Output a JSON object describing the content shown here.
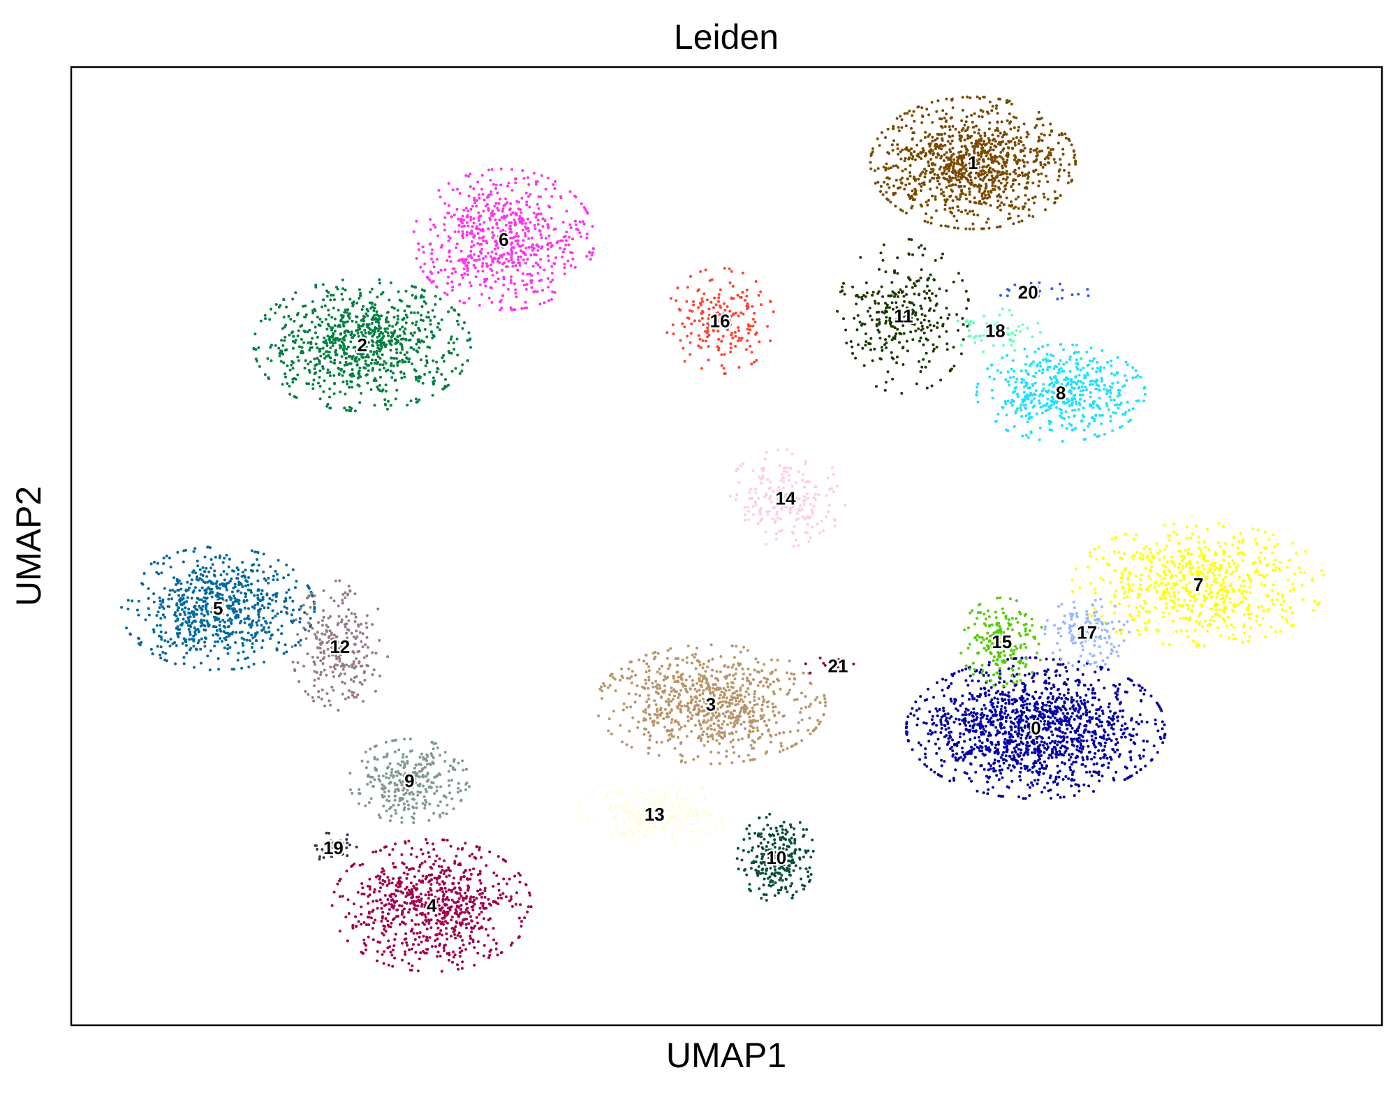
{
  "chart_data": {
    "type": "scatter",
    "title": "Leiden",
    "xlabel": "UMAP1",
    "ylabel": "UMAP2",
    "xlim": [
      0,
      100
    ],
    "ylim": [
      0,
      100
    ],
    "grid": false,
    "legend": "on data",
    "ticks": "none",
    "clusters": [
      {
        "label": "0",
        "color": "#0000a3",
        "x": 73.6,
        "y": 31.0,
        "sx": 4.3,
        "sy": 3.2,
        "n": 1400
      },
      {
        "label": "1",
        "color": "#7a4a00",
        "x": 68.8,
        "y": 90.0,
        "sx": 3.4,
        "sy": 3.0,
        "n": 1000
      },
      {
        "label": "2",
        "color": "#008040",
        "x": 22.2,
        "y": 71.0,
        "sx": 3.6,
        "sy": 3.0,
        "n": 850
      },
      {
        "label": "3",
        "color": "#b8956a",
        "x": 48.8,
        "y": 33.5,
        "sx": 3.8,
        "sy": 2.7,
        "n": 800
      },
      {
        "label": "4",
        "color": "#a0004e",
        "x": 27.5,
        "y": 12.5,
        "sx": 3.3,
        "sy": 3.0,
        "n": 750
      },
      {
        "label": "5",
        "color": "#0068a0",
        "x": 11.2,
        "y": 43.5,
        "sx": 3.2,
        "sy": 2.8,
        "n": 720
      },
      {
        "label": "6",
        "color": "#ff33ee",
        "x": 33.0,
        "y": 82.0,
        "sx": 3.0,
        "sy": 3.2,
        "n": 650
      },
      {
        "label": "7",
        "color": "#ffff00",
        "x": 86.0,
        "y": 46.0,
        "sx": 4.2,
        "sy": 2.8,
        "n": 650
      },
      {
        "label": "8",
        "color": "#20e0ff",
        "x": 75.5,
        "y": 66.0,
        "sx": 2.8,
        "sy": 2.2,
        "n": 480
      },
      {
        "label": "9",
        "color": "#7f9990",
        "x": 25.8,
        "y": 25.5,
        "sx": 2.0,
        "sy": 1.9,
        "n": 300
      },
      {
        "label": "10",
        "color": "#0a4f3c",
        "x": 53.8,
        "y": 17.5,
        "sx": 1.3,
        "sy": 2.0,
        "n": 250
      },
      {
        "label": "11",
        "color": "#1a3a00",
        "x": 63.5,
        "y": 74.0,
        "sx": 2.2,
        "sy": 3.5,
        "n": 300
      },
      {
        "label": "12",
        "color": "#987b80",
        "x": 20.5,
        "y": 39.5,
        "sx": 1.6,
        "sy": 3.0,
        "n": 260
      },
      {
        "label": "13",
        "color": "#fffdd8",
        "x": 44.5,
        "y": 22.0,
        "sx": 2.6,
        "sy": 1.5,
        "n": 220
      },
      {
        "label": "14",
        "color": "#ffcce0",
        "x": 54.5,
        "y": 55.0,
        "sx": 2.0,
        "sy": 2.2,
        "n": 200
      },
      {
        "label": "15",
        "color": "#55cc00",
        "x": 71.0,
        "y": 40.0,
        "sx": 1.4,
        "sy": 2.0,
        "n": 200
      },
      {
        "label": "16",
        "color": "#ff4433",
        "x": 49.5,
        "y": 73.5,
        "sx": 1.8,
        "sy": 2.4,
        "n": 190
      },
      {
        "label": "17",
        "color": "#99b8ff",
        "x": 77.5,
        "y": 41.0,
        "sx": 1.4,
        "sy": 1.6,
        "n": 140
      },
      {
        "label": "18",
        "color": "#66ffbb",
        "x": 70.5,
        "y": 72.5,
        "sx": 1.5,
        "sy": 1.0,
        "n": 60
      },
      {
        "label": "19",
        "color": "#44334f",
        "x": 20.0,
        "y": 18.5,
        "sx": 0.9,
        "sy": 0.7,
        "n": 45
      },
      {
        "label": "20",
        "color": "#3355ff",
        "x": 73.0,
        "y": 76.5,
        "sx": 2.2,
        "sy": 0.5,
        "n": 25
      },
      {
        "label": "21",
        "color": "#8a1040",
        "x": 58.5,
        "y": 37.5,
        "sx": 1.2,
        "sy": 0.5,
        "n": 15
      }
    ]
  }
}
